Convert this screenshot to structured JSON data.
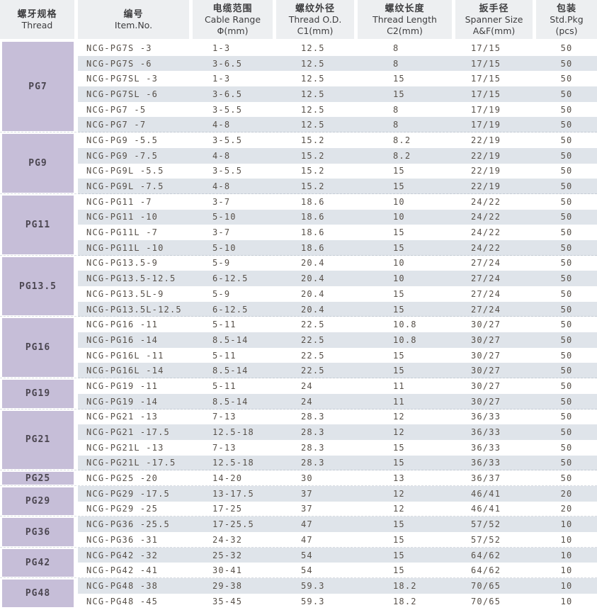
{
  "header": {
    "columns": [
      {
        "zh": "螺牙规格",
        "en": "Thread",
        "sub": ""
      },
      {
        "zh": "编号",
        "en": "Item.No.",
        "sub": ""
      },
      {
        "zh": "电缆范围",
        "en": "Cable Range",
        "sub": "Φ(mm)"
      },
      {
        "zh": "螺纹外径",
        "en": "Thread O.D.",
        "sub": "C1(mm)"
      },
      {
        "zh": "螺纹长度",
        "en": "Thread Length",
        "sub": "C2(mm)"
      },
      {
        "zh": "扳手径",
        "en": "Spanner Size",
        "sub": "A&F(mm)"
      },
      {
        "zh": "包装",
        "en": "Std.Pkg",
        "sub": "(pcs)"
      }
    ]
  },
  "groups": [
    {
      "thread": "PG7",
      "rows": [
        {
          "item": "NCG-PG7S -3",
          "cable": "1-3",
          "od": "12.5",
          "length": "8",
          "spanner": "17/15",
          "pkg": "50"
        },
        {
          "item": "NCG-PG7S -6",
          "cable": "3-6.5",
          "od": "12.5",
          "length": "8",
          "spanner": "17/15",
          "pkg": "50"
        },
        {
          "item": "NCG-PG7SL -3",
          "cable": "1-3",
          "od": "12.5",
          "length": "15",
          "spanner": "17/15",
          "pkg": "50"
        },
        {
          "item": "NCG-PG7SL -6",
          "cable": "3-6.5",
          "od": "12.5",
          "length": "15",
          "spanner": "17/15",
          "pkg": "50"
        },
        {
          "item": "NCG-PG7 -5",
          "cable": "3-5.5",
          "od": "12.5",
          "length": "8",
          "spanner": "17/19",
          "pkg": "50"
        },
        {
          "item": "NCG-PG7 -7",
          "cable": "4-8",
          "od": "12.5",
          "length": "8",
          "spanner": "17/19",
          "pkg": "50"
        }
      ]
    },
    {
      "thread": "PG9",
      "rows": [
        {
          "item": "NCG-PG9 -5.5",
          "cable": "3-5.5",
          "od": "15.2",
          "length": "8.2",
          "spanner": "22/19",
          "pkg": "50"
        },
        {
          "item": "NCG-PG9 -7.5",
          "cable": "4-8",
          "od": "15.2",
          "length": "8.2",
          "spanner": "22/19",
          "pkg": "50"
        },
        {
          "item": "NCG-PG9L -5.5",
          "cable": "3-5.5",
          "od": "15.2",
          "length": "15",
          "spanner": "22/19",
          "pkg": "50"
        },
        {
          "item": "NCG-PG9L -7.5",
          "cable": "4-8",
          "od": "15.2",
          "length": "15",
          "spanner": "22/19",
          "pkg": "50"
        }
      ]
    },
    {
      "thread": "PG11",
      "rows": [
        {
          "item": "NCG-PG11 -7",
          "cable": "3-7",
          "od": "18.6",
          "length": "10",
          "spanner": "24/22",
          "pkg": "50"
        },
        {
          "item": "NCG-PG11 -10",
          "cable": "5-10",
          "od": "18.6",
          "length": "10",
          "spanner": "24/22",
          "pkg": "50"
        },
        {
          "item": "NCG-PG11L -7",
          "cable": "3-7",
          "od": "18.6",
          "length": "15",
          "spanner": "24/22",
          "pkg": "50"
        },
        {
          "item": "NCG-PG11L -10",
          "cable": "5-10",
          "od": "18.6",
          "length": "15",
          "spanner": "24/22",
          "pkg": "50"
        }
      ]
    },
    {
      "thread": "PG13.5",
      "rows": [
        {
          "item": "NCG-PG13.5-9",
          "cable": "5-9",
          "od": "20.4",
          "length": "10",
          "spanner": "27/24",
          "pkg": "50"
        },
        {
          "item": "NCG-PG13.5-12.5",
          "cable": "6-12.5",
          "od": "20.4",
          "length": "10",
          "spanner": "27/24",
          "pkg": "50"
        },
        {
          "item": "NCG-PG13.5L-9",
          "cable": "5-9",
          "od": "20.4",
          "length": "15",
          "spanner": "27/24",
          "pkg": "50"
        },
        {
          "item": "NCG-PG13.5L-12.5",
          "cable": "6-12.5",
          "od": "20.4",
          "length": "15",
          "spanner": "27/24",
          "pkg": "50"
        }
      ]
    },
    {
      "thread": "PG16",
      "rows": [
        {
          "item": "NCG-PG16 -11",
          "cable": "5-11",
          "od": "22.5",
          "length": "10.8",
          "spanner": "30/27",
          "pkg": "50"
        },
        {
          "item": "NCG-PG16 -14",
          "cable": "8.5-14",
          "od": "22.5",
          "length": "10.8",
          "spanner": "30/27",
          "pkg": "50"
        },
        {
          "item": "NCG-PG16L -11",
          "cable": "5-11",
          "od": "22.5",
          "length": "15",
          "spanner": "30/27",
          "pkg": "50"
        },
        {
          "item": "NCG-PG16L -14",
          "cable": "8.5-14",
          "od": "22.5",
          "length": "15",
          "spanner": "30/27",
          "pkg": "50"
        }
      ]
    },
    {
      "thread": "PG19",
      "rows": [
        {
          "item": "NCG-PG19 -11",
          "cable": "5-11",
          "od": "24",
          "length": "11",
          "spanner": "30/27",
          "pkg": "50"
        },
        {
          "item": "NCG-PG19 -14",
          "cable": "8.5-14",
          "od": "24",
          "length": "11",
          "spanner": "30/27",
          "pkg": "50"
        }
      ]
    },
    {
      "thread": "PG21",
      "rows": [
        {
          "item": "NCG-PG21 -13",
          "cable": "7-13",
          "od": "28.3",
          "length": "12",
          "spanner": "36/33",
          "pkg": "50"
        },
        {
          "item": "NCG-PG21 -17.5",
          "cable": "12.5-18",
          "od": "28.3",
          "length": "12",
          "spanner": "36/33",
          "pkg": "50"
        },
        {
          "item": "NCG-PG21L -13",
          "cable": "7-13",
          "od": "28.3",
          "length": "15",
          "spanner": "36/33",
          "pkg": "50"
        },
        {
          "item": "NCG-PG21L -17.5",
          "cable": "12.5-18",
          "od": "28.3",
          "length": "15",
          "spanner": "36/33",
          "pkg": "50"
        }
      ]
    },
    {
      "thread": "PG25",
      "rows": [
        {
          "item": "NCG-PG25 -20",
          "cable": "14-20",
          "od": "30",
          "length": "13",
          "spanner": "36/37",
          "pkg": "50"
        }
      ]
    },
    {
      "thread": "PG29",
      "rows": [
        {
          "item": "NCG-PG29 -17.5",
          "cable": "13-17.5",
          "od": "37",
          "length": "12",
          "spanner": "46/41",
          "pkg": "20"
        },
        {
          "item": "NCG-PG29 -25",
          "cable": "17-25",
          "od": "37",
          "length": "12",
          "spanner": "46/41",
          "pkg": "20"
        }
      ]
    },
    {
      "thread": "PG36",
      "rows": [
        {
          "item": "NCG-PG36 -25.5",
          "cable": "17-25.5",
          "od": "47",
          "length": "15",
          "spanner": "57/52",
          "pkg": "10"
        },
        {
          "item": "NCG-PG36 -31",
          "cable": "24-32",
          "od": "47",
          "length": "15",
          "spanner": "57/52",
          "pkg": "10"
        }
      ]
    },
    {
      "thread": "PG42",
      "rows": [
        {
          "item": "NCG-PG42 -32",
          "cable": "25-32",
          "od": "54",
          "length": "15",
          "spanner": "64/62",
          "pkg": "10"
        },
        {
          "item": "NCG-PG42 -41",
          "cable": "30-41",
          "od": "54",
          "length": "15",
          "spanner": "64/62",
          "pkg": "10"
        }
      ]
    },
    {
      "thread": "PG48",
      "rows": [
        {
          "item": "NCG-PG48 -38",
          "cable": "29-38",
          "od": "59.3",
          "length": "18.2",
          "spanner": "70/65",
          "pkg": "10"
        },
        {
          "item": "NCG-PG48 -45",
          "cable": "35-45",
          "od": "59.3",
          "length": "18.2",
          "spanner": "70/65",
          "pkg": "10"
        }
      ]
    }
  ],
  "colors": {
    "thread_cell_bg": "#c6bed8",
    "header_bg": "#edeff1",
    "row_stripe_bg": "#dfe4ea",
    "row_bg": "#ffffff",
    "text": "#575049"
  }
}
